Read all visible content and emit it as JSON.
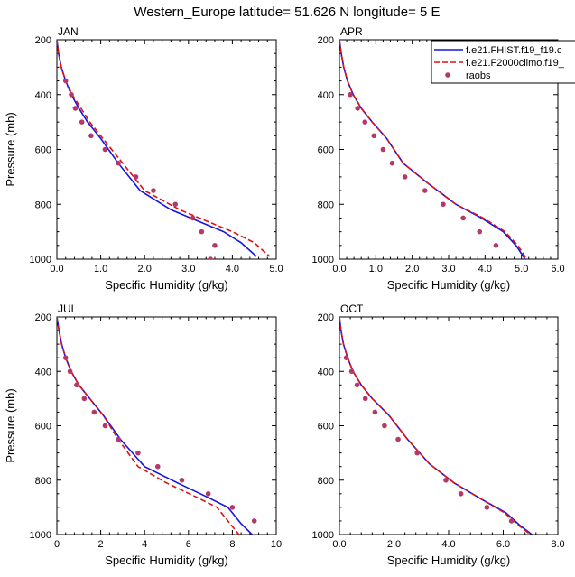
{
  "figure_title": "Western_Europe  latitude= 51.626 N longitude= 5 E",
  "colors": {
    "series_1": "#1515e6",
    "series_2": "#e01010",
    "raobs": "#b5386a"
  },
  "legend": {
    "placement": "top-right of APR panel",
    "entries": [
      "f.e21.FHIST.f19_f19.c",
      "f.e21.F2000climo.f19_",
      "raobs"
    ]
  },
  "chart_data": [
    {
      "type": "line",
      "panel": "JAN",
      "xlabel": "Specific Humidity (g/kg)",
      "ylabel": "Pressure (mb)",
      "xlim": [
        0,
        5
      ],
      "ylim": [
        200,
        1000
      ],
      "y_inverted": true,
      "xticks": [
        "0.0",
        "1.0",
        "2.0",
        "3.0",
        "4.0",
        "5.0"
      ],
      "yticks": [
        "200",
        "400",
        "600",
        "800",
        "1000"
      ],
      "series": [
        {
          "name": "f.e21.FHIST.f19_f19.c",
          "style": "solid",
          "x": [
            0,
            0.04,
            0.1,
            0.2,
            0.33,
            0.5,
            0.7,
            1.0,
            1.4,
            1.9,
            2.6,
            3.2,
            3.8,
            4.2,
            4.55
          ],
          "y": [
            200,
            250,
            300,
            350,
            400,
            450,
            500,
            560,
            650,
            750,
            820,
            860,
            900,
            940,
            990
          ]
        },
        {
          "name": "f.e21.F2000climo.f19_",
          "style": "dashed",
          "x": [
            0,
            0.04,
            0.1,
            0.2,
            0.35,
            0.55,
            0.75,
            1.05,
            1.5,
            2.0,
            2.8,
            3.4,
            4.0,
            4.5,
            4.85
          ],
          "y": [
            200,
            250,
            300,
            350,
            400,
            450,
            500,
            560,
            650,
            750,
            820,
            860,
            900,
            940,
            990
          ]
        },
        {
          "name": "raobs",
          "style": "markers",
          "x": [
            0.2,
            0.33,
            0.42,
            0.57,
            0.78,
            1.1,
            1.4,
            1.8,
            2.2,
            2.7,
            3.1,
            3.3,
            3.6,
            3.5
          ],
          "y": [
            350,
            400,
            450,
            500,
            550,
            600,
            650,
            700,
            750,
            800,
            850,
            900,
            950,
            1000
          ]
        }
      ]
    },
    {
      "type": "line",
      "panel": "APR",
      "xlabel": "Specific Humidity (g/kg)",
      "ylabel": "Pressure (mb)",
      "xlim": [
        0,
        6
      ],
      "ylim": [
        200,
        1000
      ],
      "y_inverted": true,
      "xticks": [
        "0.0",
        "1.0",
        "2.0",
        "3.0",
        "4.0",
        "5.0",
        "6.0"
      ],
      "yticks": [
        "200",
        "400",
        "600",
        "800",
        "1000"
      ],
      "series": [
        {
          "name": "f.e21.FHIST.f19_f19.c",
          "style": "solid",
          "x": [
            0,
            0.05,
            0.12,
            0.22,
            0.38,
            0.6,
            0.9,
            1.3,
            1.75,
            2.4,
            3.2,
            3.9,
            4.5,
            4.85,
            5.1
          ],
          "y": [
            200,
            250,
            300,
            350,
            400,
            450,
            500,
            560,
            650,
            720,
            800,
            850,
            900,
            950,
            1000
          ]
        },
        {
          "name": "f.e21.F2000climo.f19_",
          "style": "dashed",
          "x": [
            0,
            0.05,
            0.12,
            0.22,
            0.38,
            0.6,
            0.9,
            1.3,
            1.75,
            2.4,
            3.2,
            3.95,
            4.55,
            4.9,
            5.15
          ],
          "y": [
            200,
            250,
            300,
            350,
            400,
            450,
            500,
            560,
            650,
            720,
            800,
            850,
            900,
            950,
            1000
          ]
        },
        {
          "name": "raobs",
          "style": "markers",
          "x": [
            0.3,
            0.5,
            0.7,
            0.95,
            1.2,
            1.45,
            1.8,
            2.35,
            2.85,
            3.4,
            3.85,
            4.3
          ],
          "y": [
            400,
            450,
            500,
            550,
            600,
            650,
            700,
            750,
            800,
            850,
            900,
            950
          ]
        }
      ]
    },
    {
      "type": "line",
      "panel": "JUL",
      "xlabel": "Specific Humidity (g/kg)",
      "ylabel": "Pressure (mb)",
      "xlim": [
        0,
        10
      ],
      "ylim": [
        200,
        1000
      ],
      "y_inverted": true,
      "xticks": [
        "0",
        "2",
        "4",
        "6",
        "8",
        "10"
      ],
      "yticks": [
        "200",
        "400",
        "600",
        "800",
        "1000"
      ],
      "series": [
        {
          "name": "f.e21.FHIST.f19_f19.c",
          "style": "solid",
          "x": [
            0,
            0.1,
            0.22,
            0.4,
            0.65,
            1.0,
            1.5,
            2.1,
            2.9,
            4.0,
            5.5,
            6.8,
            7.8,
            8.4,
            8.9
          ],
          "y": [
            200,
            250,
            300,
            350,
            400,
            450,
            500,
            560,
            650,
            750,
            810,
            860,
            900,
            960,
            1000
          ]
        },
        {
          "name": "f.e21.F2000climo.f19_",
          "style": "dashed",
          "x": [
            0,
            0.1,
            0.22,
            0.4,
            0.65,
            1.0,
            1.5,
            2.1,
            2.8,
            3.7,
            5.0,
            6.3,
            7.3,
            7.9,
            8.3
          ],
          "y": [
            200,
            250,
            300,
            350,
            400,
            450,
            500,
            560,
            650,
            750,
            810,
            860,
            900,
            960,
            1000
          ]
        },
        {
          "name": "raobs",
          "style": "markers",
          "x": [
            0.4,
            0.6,
            0.9,
            1.25,
            1.7,
            2.2,
            2.8,
            3.7,
            4.6,
            5.7,
            6.9,
            8.0,
            9.0
          ],
          "y": [
            350,
            400,
            450,
            500,
            550,
            600,
            650,
            700,
            750,
            800,
            850,
            900,
            950
          ]
        }
      ]
    },
    {
      "type": "line",
      "panel": "OCT",
      "xlabel": "Specific Humidity (g/kg)",
      "ylabel": "Pressure (mb)",
      "xlim": [
        0,
        8
      ],
      "ylim": [
        200,
        1000
      ],
      "y_inverted": true,
      "xticks": [
        "0.0",
        "2.0",
        "4.0",
        "6.0",
        "8.0"
      ],
      "yticks": [
        "200",
        "400",
        "600",
        "800",
        "1000"
      ],
      "series": [
        {
          "name": "f.e21.FHIST.f19_f19.c",
          "style": "solid",
          "x": [
            0,
            0.06,
            0.15,
            0.3,
            0.5,
            0.8,
            1.2,
            1.8,
            2.5,
            3.3,
            4.2,
            5.2,
            6.1,
            6.6,
            7.05
          ],
          "y": [
            200,
            250,
            300,
            350,
            400,
            450,
            500,
            560,
            650,
            740,
            810,
            870,
            920,
            965,
            1000
          ]
        },
        {
          "name": "f.e21.F2000climo.f19_",
          "style": "dashed",
          "x": [
            0,
            0.06,
            0.15,
            0.3,
            0.5,
            0.8,
            1.2,
            1.8,
            2.5,
            3.3,
            4.2,
            5.2,
            6.05,
            6.55,
            7.0
          ],
          "y": [
            200,
            250,
            300,
            350,
            400,
            450,
            500,
            560,
            650,
            740,
            810,
            870,
            920,
            965,
            1000
          ]
        },
        {
          "name": "raobs",
          "style": "markers",
          "x": [
            0.25,
            0.45,
            0.65,
            0.95,
            1.3,
            1.65,
            2.15,
            2.85,
            3.9,
            4.45,
            5.4,
            6.3
          ],
          "y": [
            350,
            400,
            450,
            500,
            550,
            600,
            650,
            700,
            800,
            850,
            900,
            950
          ]
        }
      ]
    }
  ]
}
